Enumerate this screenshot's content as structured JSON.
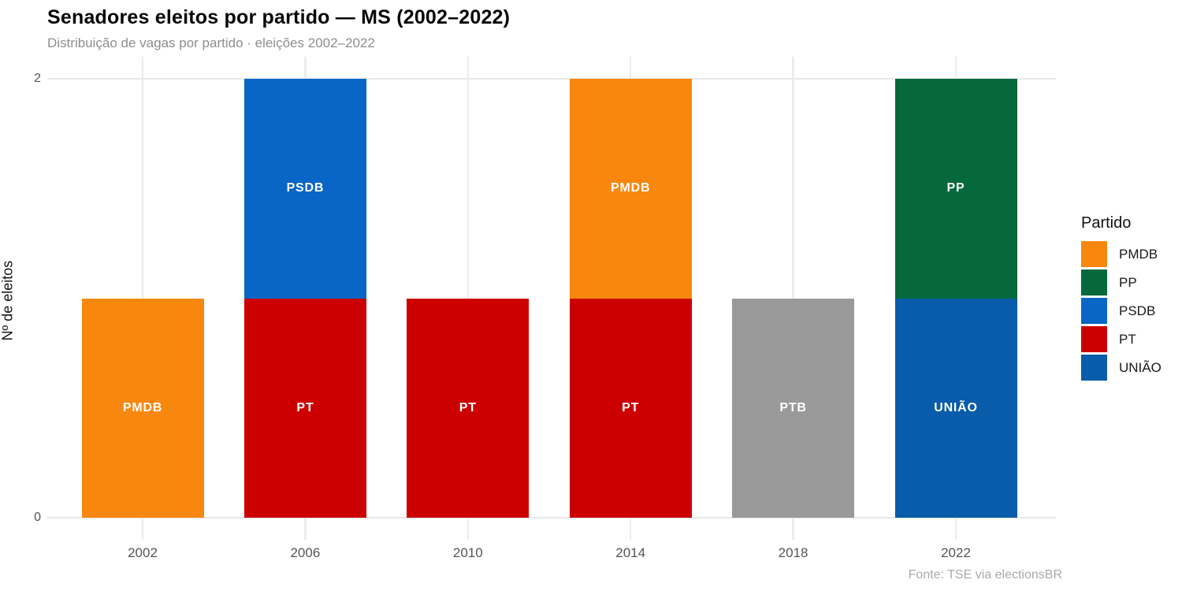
{
  "header": {
    "title": "Senadores eleitos por partido — MS (2002–2022)",
    "subtitle": "Distribuição de vagas por partido · eleições 2002–2022"
  },
  "caption": "Fonte: TSE via electionsBR",
  "chart_data": {
    "type": "bar",
    "stacked": true,
    "title": "Senadores eleitos por partido — MS (2002–2022)",
    "subtitle": "Distribuição de vagas por partido · eleições 2002–2022",
    "xlabel": "",
    "ylabel": "Nº de eleitos",
    "categories": [
      "2002",
      "2006",
      "2010",
      "2014",
      "2018",
      "2022"
    ],
    "y_ticks": [
      0,
      2
    ],
    "ylim": [
      0,
      2
    ],
    "grid": "major-only",
    "legend_position": "right",
    "legend": {
      "title": "Partido",
      "entries": [
        {
          "label": "PMDB",
          "color": "#F8870E"
        },
        {
          "label": "PP",
          "color": "#05693C"
        },
        {
          "label": "PSDB",
          "color": "#0A66C6"
        },
        {
          "label": "PT",
          "color": "#CC0000"
        },
        {
          "label": "UNIÃO",
          "color": "#085CA9"
        }
      ]
    },
    "bars": [
      {
        "category": "2002",
        "total": 1,
        "segments": [
          {
            "party": "PMDB",
            "value": 1,
            "color": "#F8870E"
          }
        ]
      },
      {
        "category": "2006",
        "total": 2,
        "segments": [
          {
            "party": "PT",
            "value": 1,
            "color": "#CC0000"
          },
          {
            "party": "PSDB",
            "value": 1,
            "color": "#0A66C6"
          }
        ]
      },
      {
        "category": "2010",
        "total": 1,
        "segments": [
          {
            "party": "PT",
            "value": 1,
            "color": "#CC0000"
          }
        ]
      },
      {
        "category": "2014",
        "total": 2,
        "segments": [
          {
            "party": "PT",
            "value": 1,
            "color": "#CC0000"
          },
          {
            "party": "PMDB",
            "value": 1,
            "color": "#F8870E"
          }
        ]
      },
      {
        "category": "2018",
        "total": 1,
        "segments": [
          {
            "party": "PTB",
            "value": 1,
            "color": "#9A9A9A"
          }
        ]
      },
      {
        "category": "2022",
        "total": 2,
        "segments": [
          {
            "party": "UNIÃO",
            "value": 1,
            "color": "#085CA9"
          },
          {
            "party": "PP",
            "value": 1,
            "color": "#05693C"
          }
        ]
      }
    ]
  }
}
